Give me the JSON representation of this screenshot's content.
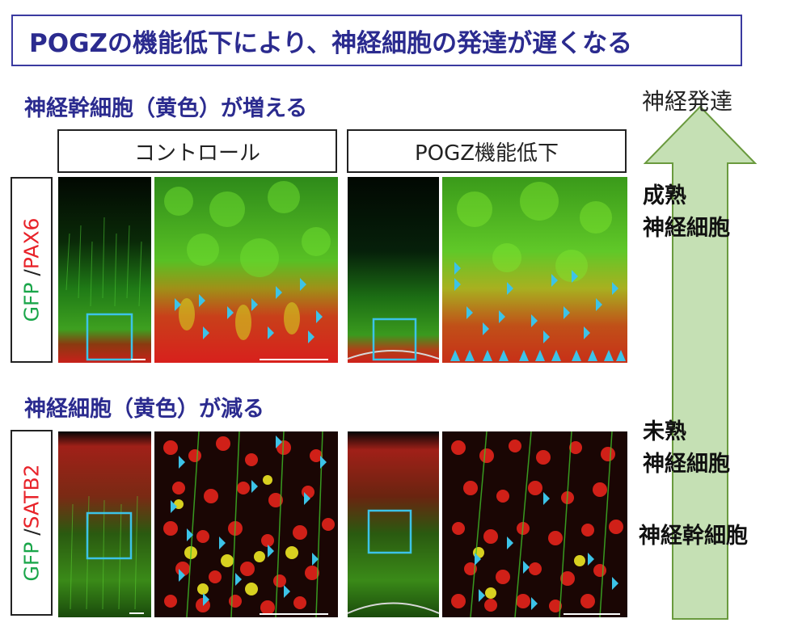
{
  "title": "POGZの機能低下により、神経細胞の発達が遅くなる",
  "sections": {
    "top_heading": "神経幹細胞（黄色）が増える",
    "bottom_heading": "神経細胞（黄色）が減る"
  },
  "columns": {
    "control": "コントロール",
    "pogz": "POGZ機能低下"
  },
  "rows": {
    "top": {
      "gfp": "GFP",
      "slash": " /",
      "marker": "PAX6"
    },
    "bottom": {
      "gfp": "GFP",
      "slash": " /",
      "marker": "SATB2"
    }
  },
  "arrow": {
    "label": "神経発達"
  },
  "stages": {
    "mature_line1": "成熟",
    "mature_line2": "神経細胞",
    "immature_line1": "未熟",
    "immature_line2": "神経細胞",
    "stem": "神経幹細胞"
  },
  "colors": {
    "title_text": "#2b2b8f",
    "gfp_green": "#1aa64a",
    "marker_red": "#e8232a",
    "arrowhead_cyan": "#3cc3e8",
    "arrow_fill": "#c5e0b4",
    "arrow_stroke": "#6a9a3e"
  }
}
